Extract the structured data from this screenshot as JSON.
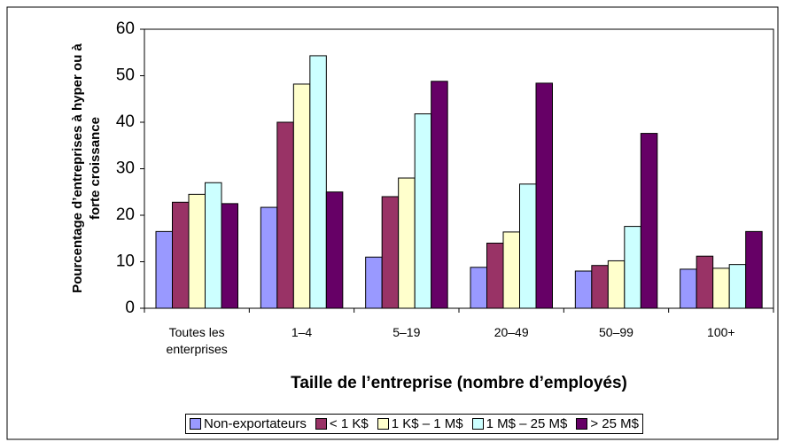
{
  "chart_data": {
    "type": "bar",
    "ylabel": "Pourcentage d’entreprises à hyper ou à forte croissance",
    "xlabel": "Taille de l’entreprise (nombre d’employés)",
    "categories": [
      "Toutes les enterprises",
      "1–4",
      "5–19",
      "20–49",
      "50–99",
      "100+"
    ],
    "series": [
      {
        "name": "Non-exportateurs",
        "color": "#9999ff",
        "values": [
          16.5,
          21.7,
          11,
          8.8,
          8,
          8.4
        ]
      },
      {
        "name": "< 1 K$",
        "color": "#993366",
        "values": [
          22.8,
          40,
          24,
          14,
          9.2,
          11.2
        ]
      },
      {
        "name": "1 K$ – 1 M$",
        "color": "#ffffcc",
        "values": [
          24.5,
          48.2,
          28,
          16.4,
          10.2,
          8.6
        ]
      },
      {
        "name": "1 M$ – 25 M$",
        "color": "#ccffff",
        "values": [
          27,
          54.3,
          41.8,
          26.7,
          17.6,
          9.4
        ]
      },
      {
        "name": "> 25 M$",
        "color": "#660066",
        "values": [
          22.5,
          25,
          48.8,
          48.4,
          37.6,
          16.5
        ]
      }
    ],
    "ylim": [
      0,
      60
    ],
    "yticks": [
      0,
      10,
      20,
      30,
      40,
      50,
      60
    ],
    "grid": false,
    "legend": "bottom"
  }
}
